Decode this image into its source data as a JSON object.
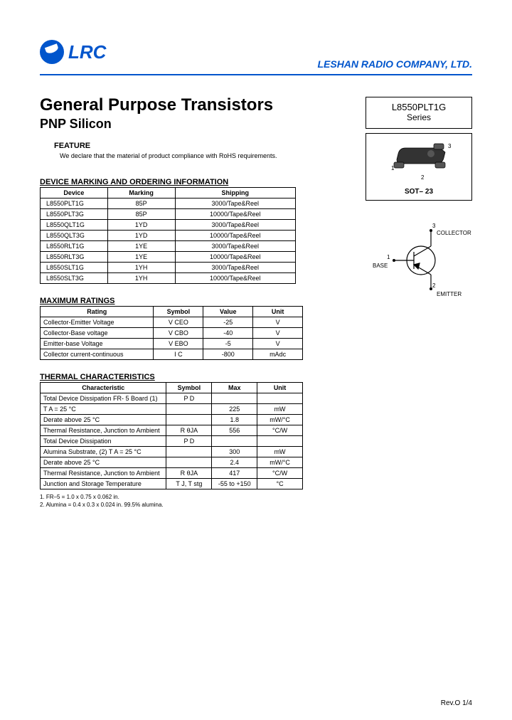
{
  "header": {
    "logo_text": "LRC",
    "company": "LESHAN RADIO COMPANY, LTD."
  },
  "titles": {
    "main": "General Purpose Transistors",
    "sub": "PNP Silicon"
  },
  "feature": {
    "head": "FEATURE",
    "text": "We declare that the material of product compliance with RoHS requirements."
  },
  "side": {
    "part": "L8550PLT1G",
    "series": "Series",
    "pkg_label": "SOT– 23",
    "pin_collector": "COLLECTOR",
    "pin_base": "BASE",
    "pin_emitter": "EMITTER",
    "pin1": "1",
    "pin2": "2",
    "pin3": "3"
  },
  "t1": {
    "head": "DEVICE MARKING AND ORDERING INFORMATION",
    "columns": [
      "Device",
      "Marking",
      "Shipping"
    ],
    "rows": [
      [
        "L8550PLT1G",
        "85P",
        "3000/Tape&Reel"
      ],
      [
        "L8550PLT3G",
        "85P",
        "10000/Tape&Reel"
      ],
      [
        "L8550QLT1G",
        "1YD",
        "3000/Tape&Reel"
      ],
      [
        "L8550QLT3G",
        "1YD",
        "10000/Tape&Reel"
      ],
      [
        "L8550RLT1G",
        "1YE",
        "3000/Tape&Reel"
      ],
      [
        "L8550RLT3G",
        "1YE",
        "10000/Tape&Reel"
      ],
      [
        "L8550SLT1G",
        "1YH",
        "3000/Tape&Reel"
      ],
      [
        "L8550SLT3G",
        "1YH",
        "10000/Tape&Reel"
      ]
    ]
  },
  "t2": {
    "head": "MAXIMUM RATINGS",
    "columns": [
      "Rating",
      "Symbol",
      "Value",
      "Unit"
    ],
    "rows": [
      [
        "Collector-Emitter Voltage",
        "V CEO",
        "-25",
        "V"
      ],
      [
        "Collector-Base voltage",
        "V CBO",
        "-40",
        "V"
      ],
      [
        "Emitter-base Voltage",
        "V EBO",
        "-5",
        "V"
      ],
      [
        "Collector current-continuous",
        "I C",
        "-800",
        "mAdc"
      ]
    ]
  },
  "t3": {
    "head": "THERMAL CHARACTERISTICS",
    "columns": [
      "Characteristic",
      "Symbol",
      "Max",
      "Unit"
    ],
    "rows": [
      [
        "Total Device Dissipation FR- 5 Board (1)",
        "P D",
        "",
        ""
      ],
      [
        "T A = 25 °C",
        "",
        "225",
        "mW"
      ],
      [
        "Derate above 25 °C",
        "",
        "1.8",
        "mW/°C"
      ],
      [
        "Thermal Resistance, Junction to Ambient",
        "R θJA",
        "556",
        "°C/W"
      ],
      [
        "Total Device Dissipation",
        "P D",
        "",
        ""
      ],
      [
        "Alumina Substrate, (2) T A = 25 °C",
        "",
        "300",
        "mW"
      ],
      [
        "Derate above 25 °C",
        "",
        "2.4",
        "mW/°C"
      ],
      [
        "Thermal Resistance, Junction to Ambient",
        "R θJA",
        "417",
        "°C/W"
      ],
      [
        "Junction and Storage Temperature",
        "T J, T stg",
        "-55 to +150",
        "°C"
      ]
    ]
  },
  "notes": {
    "n1": "1. FR–5 = 1.0 x 0.75 x 0.062 in.",
    "n2": "2. Alumina = 0.4 x 0.3 x 0.024 in. 99.5% alumina."
  },
  "footer": "Rev.O  1/4",
  "colors": {
    "brand": "#0055cc"
  }
}
